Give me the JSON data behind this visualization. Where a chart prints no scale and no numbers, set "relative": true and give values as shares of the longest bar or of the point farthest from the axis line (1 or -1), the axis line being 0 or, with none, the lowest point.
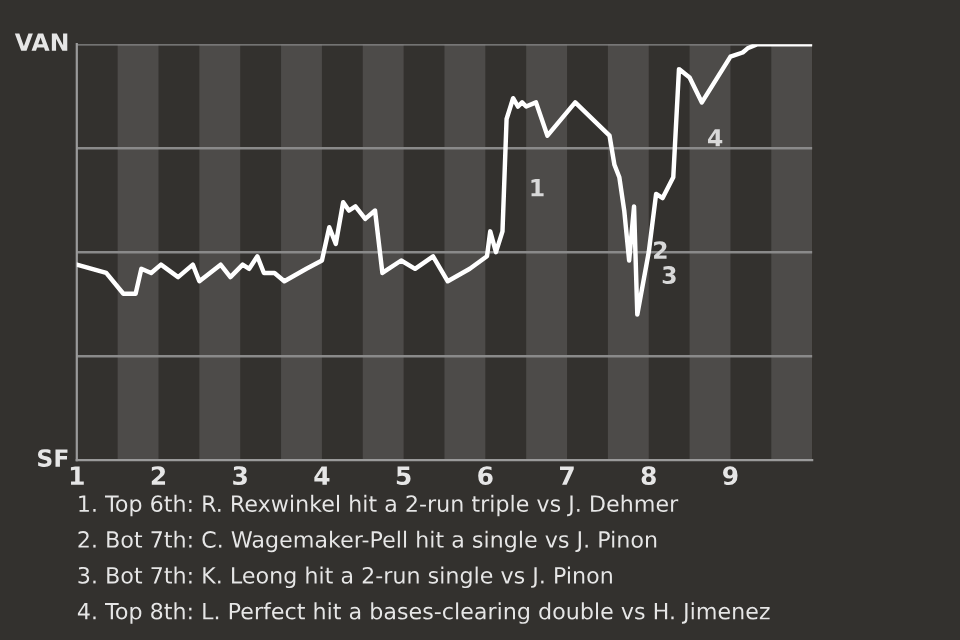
{
  "chart_data": {
    "type": "line",
    "relative": true,
    "x": [
      1.0,
      1.36,
      1.57,
      1.72,
      1.79,
      1.91,
      2.03,
      2.24,
      2.42,
      2.5,
      2.76,
      2.88,
      3.03,
      3.11,
      3.21,
      3.29,
      3.42,
      3.54,
      3.81,
      4.0,
      4.09,
      4.17,
      4.26,
      4.33,
      4.41,
      4.53,
      4.65,
      4.74,
      4.97,
      5.14,
      5.36,
      5.54,
      5.81,
      6.02,
      6.06,
      6.13,
      6.21,
      6.26,
      6.34,
      6.4,
      6.45,
      6.5,
      6.62,
      6.76,
      7.1,
      7.52,
      7.58,
      7.64,
      7.7,
      7.76,
      7.82,
      7.86,
      8.0,
      8.09,
      8.17,
      8.3,
      8.37,
      8.5,
      8.65,
      9.0,
      9.15,
      9.21,
      9.33,
      9.69,
      10.0
    ],
    "series": [
      {
        "color": "#ffffff",
        "values": [
          0.47,
          0.45,
          0.4,
          0.4,
          0.46,
          0.45,
          0.47,
          0.44,
          0.47,
          0.43,
          0.47,
          0.44,
          0.47,
          0.46,
          0.49,
          0.45,
          0.45,
          0.43,
          0.46,
          0.48,
          0.56,
          0.52,
          0.62,
          0.6,
          0.61,
          0.58,
          0.6,
          0.45,
          0.48,
          0.46,
          0.49,
          0.43,
          0.46,
          0.49,
          0.55,
          0.5,
          0.55,
          0.82,
          0.87,
          0.85,
          0.86,
          0.85,
          0.86,
          0.78,
          0.86,
          0.78,
          0.71,
          0.68,
          0.6,
          0.48,
          0.61,
          0.35,
          0.5,
          0.64,
          0.63,
          0.68,
          0.94,
          0.92,
          0.86,
          0.97,
          0.98,
          0.99,
          1.0,
          1.0,
          1.0
        ]
      }
    ],
    "xlim": [
      1,
      10
    ],
    "xticks": [
      1,
      2,
      3,
      4,
      5,
      6,
      7,
      8,
      9
    ],
    "grid": "y",
    "marker": "none",
    "line_style": "solid",
    "bands": [
      {
        "axis": "x",
        "from": 1.5,
        "to": 2,
        "color": "#4d4b49"
      },
      {
        "axis": "x",
        "from": 2.5,
        "to": 3,
        "color": "#4d4b49"
      },
      {
        "axis": "x",
        "from": 3.5,
        "to": 4,
        "color": "#4d4b49"
      },
      {
        "axis": "x",
        "from": 4.5,
        "to": 5,
        "color": "#4d4b49"
      },
      {
        "axis": "x",
        "from": 5.5,
        "to": 6,
        "color": "#4d4b49"
      },
      {
        "axis": "x",
        "from": 6.5,
        "to": 7,
        "color": "#4d4b49"
      },
      {
        "axis": "x",
        "from": 7.5,
        "to": 8,
        "color": "#4d4b49"
      },
      {
        "axis": "x",
        "from": 8.5,
        "to": 9,
        "color": "#4d4b49"
      },
      {
        "axis": "x",
        "from": 9.5,
        "to": 10,
        "color": "#4d4b49"
      }
    ],
    "annotations": [
      "VAN",
      "SF",
      {
        "text": "1",
        "x": 6.26,
        "y": 0.65
      },
      {
        "text": "2",
        "x": 7.77,
        "y": 0.5
      },
      {
        "text": "3",
        "x": 7.88,
        "y": 0.44
      },
      {
        "text": "4",
        "x": 8.44,
        "y": 0.77
      },
      "1. Top 6th: R. Rexwinkel hit a 2-run triple vs J. Dehmer",
      "2. Bot 7th: C. Wagemaker-Pell hit a single vs J. Pinon",
      "3. Bot 7th: K. Leong hit a 2-run single vs J. Pinon",
      "4. Top 8th: L. Perfect hit a bases-clearing double vs H. Jimenez"
    ]
  }
}
